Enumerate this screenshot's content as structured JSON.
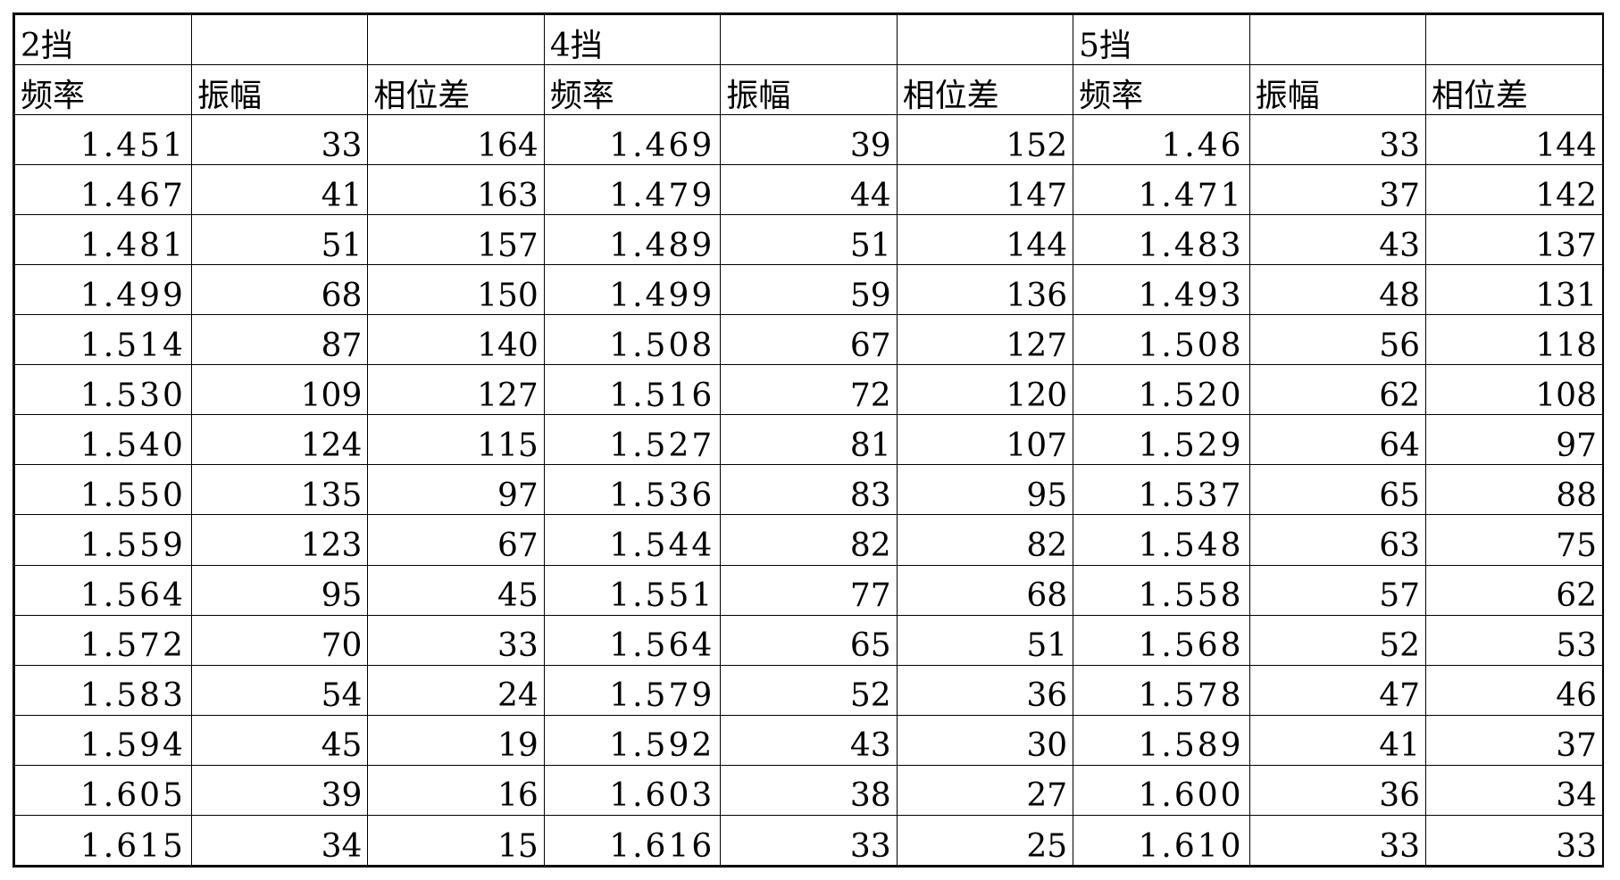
{
  "groups": [
    {
      "label": "2挡"
    },
    {
      "label": "4挡"
    },
    {
      "label": "5挡"
    }
  ],
  "column_headers": [
    "频率",
    "振幅",
    "相位差",
    "频率",
    "振幅",
    "相位差",
    "频率",
    "振幅",
    "相位差"
  ],
  "rows": [
    [
      "1.451",
      "33",
      "164",
      "1.469",
      "39",
      "152",
      "1.46",
      "33",
      "144"
    ],
    [
      "1.467",
      "41",
      "163",
      "1.479",
      "44",
      "147",
      "1.471",
      "37",
      "142"
    ],
    [
      "1.481",
      "51",
      "157",
      "1.489",
      "51",
      "144",
      "1.483",
      "43",
      "137"
    ],
    [
      "1.499",
      "68",
      "150",
      "1.499",
      "59",
      "136",
      "1.493",
      "48",
      "131"
    ],
    [
      "1.514",
      "87",
      "140",
      "1.508",
      "67",
      "127",
      "1.508",
      "56",
      "118"
    ],
    [
      "1.530",
      "109",
      "127",
      "1.516",
      "72",
      "120",
      "1.520",
      "62",
      "108"
    ],
    [
      "1.540",
      "124",
      "115",
      "1.527",
      "81",
      "107",
      "1.529",
      "64",
      "97"
    ],
    [
      "1.550",
      "135",
      "97",
      "1.536",
      "83",
      "95",
      "1.537",
      "65",
      "88"
    ],
    [
      "1.559",
      "123",
      "67",
      "1.544",
      "82",
      "82",
      "1.548",
      "63",
      "75"
    ],
    [
      "1.564",
      "95",
      "45",
      "1.551",
      "77",
      "68",
      "1.558",
      "57",
      "62"
    ],
    [
      "1.572",
      "70",
      "33",
      "1.564",
      "65",
      "51",
      "1.568",
      "52",
      "53"
    ],
    [
      "1.583",
      "54",
      "24",
      "1.579",
      "52",
      "36",
      "1.578",
      "47",
      "46"
    ],
    [
      "1.594",
      "45",
      "19",
      "1.592",
      "43",
      "30",
      "1.589",
      "41",
      "37"
    ],
    [
      "1.605",
      "39",
      "16",
      "1.603",
      "38",
      "27",
      "1.600",
      "36",
      "34"
    ],
    [
      "1.615",
      "34",
      "15",
      "1.616",
      "33",
      "25",
      "1.610",
      "33",
      "33"
    ]
  ],
  "colors": {
    "grid_line": "#000000",
    "background": "#ffffff",
    "text": "#000000"
  }
}
